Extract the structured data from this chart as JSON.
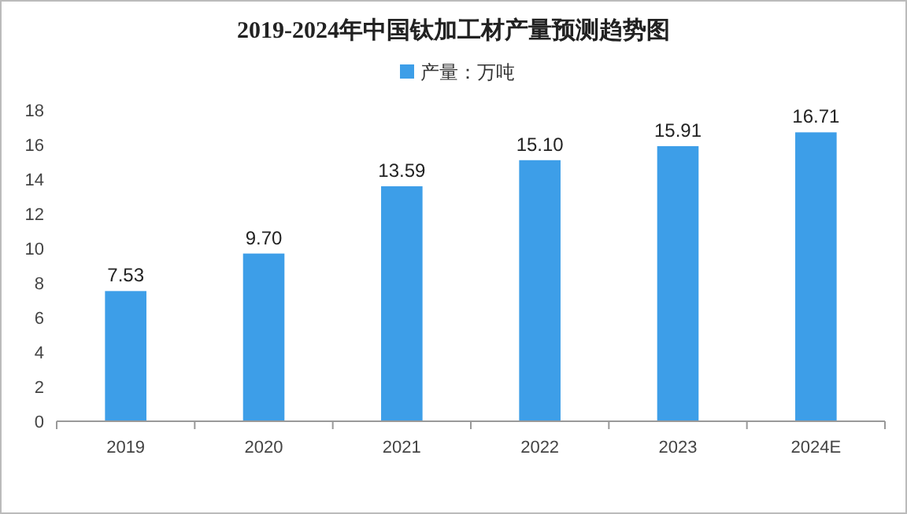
{
  "chart_data": {
    "type": "bar",
    "title": "2019-2024年中国钛加工材产量预测趋势图",
    "categories": [
      "2019",
      "2020",
      "2021",
      "2022",
      "2023",
      "2024E"
    ],
    "series": [
      {
        "name": "产量：万吨",
        "color": "#3d9ee8",
        "values": [
          7.53,
          9.7,
          13.59,
          15.1,
          15.91,
          16.71
        ]
      }
    ],
    "ylim": [
      0,
      18
    ],
    "yticks": [
      0,
      2,
      4,
      6,
      8,
      10,
      12,
      14,
      16,
      18
    ],
    "value_labels": [
      "7.53",
      "9.70",
      "13.59",
      "15.10",
      "15.91",
      "16.71"
    ],
    "legend": "top",
    "grid": false
  }
}
